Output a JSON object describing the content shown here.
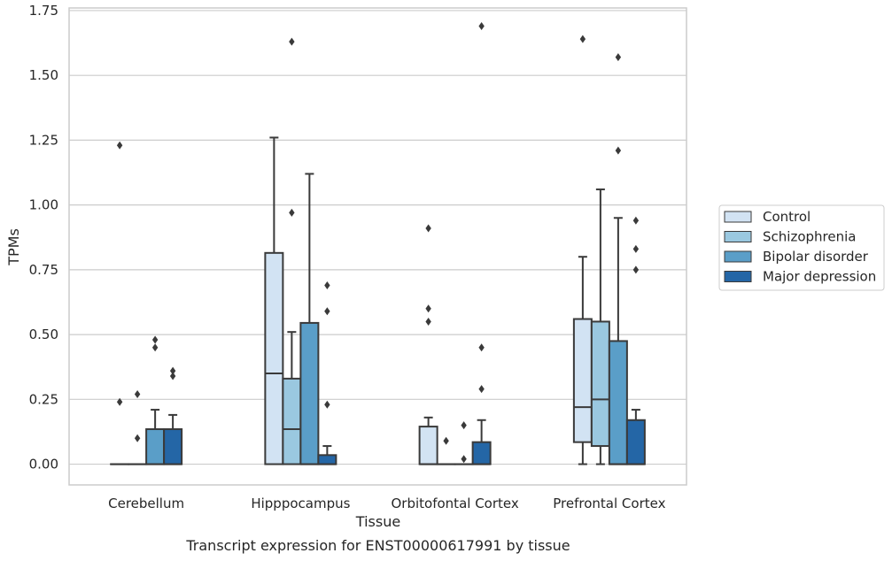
{
  "chart_data": {
    "type": "box",
    "title": "Transcript expression for ENST00000617991 by tissue",
    "xlabel": "Tissue",
    "ylabel": "TPMs",
    "ylim": [
      -0.08,
      1.76
    ],
    "yticks": [
      "0.00",
      "0.25",
      "0.50",
      "0.75",
      "1.00",
      "1.25",
      "1.50",
      "1.75"
    ],
    "ytick_values": [
      0,
      0.25,
      0.5,
      0.75,
      1.0,
      1.25,
      1.5,
      1.75
    ],
    "grid": "horizontal",
    "legend_position": "right",
    "categories": [
      "Cerebellum",
      "Hipppocampus",
      "Orbitofontal Cortex",
      "Prefrontal Cortex"
    ],
    "series": [
      {
        "name": "Control",
        "color": "#d2e3f3",
        "boxes": [
          {
            "q1": 0,
            "median": 0,
            "q3": 0,
            "whisker_low": 0,
            "whisker_high": 0,
            "outliers": [
              0.24,
              1.23
            ]
          },
          {
            "q1": 0,
            "median": 0.35,
            "q3": 0.815,
            "whisker_low": 0,
            "whisker_high": 1.26,
            "outliers": []
          },
          {
            "q1": 0,
            "median": 0,
            "q3": 0.145,
            "whisker_low": 0,
            "whisker_high": 0.18,
            "outliers": [
              0.55,
              0.6,
              0.91
            ]
          },
          {
            "q1": 0.085,
            "median": 0.22,
            "q3": 0.56,
            "whisker_low": 0,
            "whisker_high": 0.8,
            "outliers": [
              1.64
            ]
          }
        ]
      },
      {
        "name": "Schizophrenia",
        "color": "#9ac8e0",
        "boxes": [
          {
            "q1": 0,
            "median": 0,
            "q3": 0,
            "whisker_low": 0,
            "whisker_high": 0,
            "outliers": [
              0.1,
              0.27
            ]
          },
          {
            "q1": 0,
            "median": 0.135,
            "q3": 0.33,
            "whisker_low": 0,
            "whisker_high": 0.51,
            "outliers": [
              0.97,
              1.63
            ]
          },
          {
            "q1": 0,
            "median": 0,
            "q3": 0,
            "whisker_low": 0,
            "whisker_high": 0,
            "outliers": [
              0.09
            ]
          },
          {
            "q1": 0.07,
            "median": 0.25,
            "q3": 0.55,
            "whisker_low": 0,
            "whisker_high": 1.06,
            "outliers": []
          }
        ]
      },
      {
        "name": "Bipolar disorder",
        "color": "#5a9ec8",
        "boxes": [
          {
            "q1": 0,
            "median": 0,
            "q3": 0.135,
            "whisker_low": 0,
            "whisker_high": 0.21,
            "outliers": [
              0.45,
              0.48
            ]
          },
          {
            "q1": 0,
            "median": 0,
            "q3": 0.545,
            "whisker_low": 0,
            "whisker_high": 1.12,
            "outliers": []
          },
          {
            "q1": 0,
            "median": 0,
            "q3": 0,
            "whisker_low": 0,
            "whisker_high": 0,
            "outliers": [
              0.02,
              0.15
            ]
          },
          {
            "q1": 0,
            "median": 0,
            "q3": 0.475,
            "whisker_low": 0,
            "whisker_high": 0.95,
            "outliers": [
              1.21,
              1.57
            ]
          }
        ]
      },
      {
        "name": "Major depression",
        "color": "#2466a6",
        "boxes": [
          {
            "q1": 0,
            "median": 0,
            "q3": 0.135,
            "whisker_low": 0,
            "whisker_high": 0.19,
            "outliers": [
              0.34,
              0.36
            ]
          },
          {
            "q1": 0,
            "median": 0,
            "q3": 0.035,
            "whisker_low": 0,
            "whisker_high": 0.07,
            "outliers": [
              0.23,
              0.59,
              0.69
            ]
          },
          {
            "q1": 0,
            "median": 0,
            "q3": 0.085,
            "whisker_low": 0,
            "whisker_high": 0.17,
            "outliers": [
              0.29,
              0.45,
              1.69
            ]
          },
          {
            "q1": 0,
            "median": 0,
            "q3": 0.17,
            "whisker_low": 0,
            "whisker_high": 0.21,
            "outliers": [
              0.75,
              0.83,
              0.94
            ]
          }
        ]
      }
    ]
  }
}
